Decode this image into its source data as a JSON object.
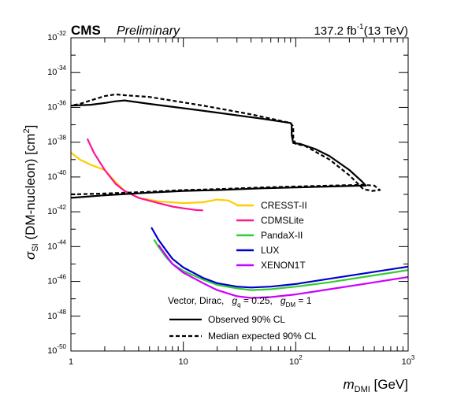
{
  "header": {
    "experiment": "CMS",
    "status": "Preliminary",
    "lumi_value": "137.2 fb",
    "lumi_exp": "-1",
    "lumi_energy": "(13 TeV)"
  },
  "chart_data": {
    "type": "line",
    "xscale": "log",
    "yscale": "log",
    "xlim": [
      1,
      1000
    ],
    "ylim": [
      1e-50,
      1e-32
    ],
    "xlabel": {
      "main": "m",
      "sub": "DMI",
      "unit": " [GeV]"
    },
    "ylabel": {
      "main": "σ",
      "sub": "SI",
      "text": " (DM-nucleon) [cm",
      "sup": "2",
      "close": "]"
    },
    "x_ticks": [
      {
        "value": 1,
        "label": "1"
      },
      {
        "value": 10,
        "label": "10"
      },
      {
        "value": 100,
        "label": "10",
        "exp": "2"
      },
      {
        "value": 1000,
        "label": "10",
        "exp": "3"
      }
    ],
    "y_ticks": [
      {
        "value": 1e-50,
        "label": "10",
        "exp": "-50"
      },
      {
        "value": 1e-48,
        "label": "10",
        "exp": "-48"
      },
      {
        "value": 1e-46,
        "label": "10",
        "exp": "-46"
      },
      {
        "value": 1e-44,
        "label": "10",
        "exp": "-44"
      },
      {
        "value": 1e-42,
        "label": "10",
        "exp": "-42"
      },
      {
        "value": 1e-40,
        "label": "10",
        "exp": "-40"
      },
      {
        "value": 1e-38,
        "label": "10",
        "exp": "-38"
      },
      {
        "value": 1e-36,
        "label": "10",
        "exp": "-36"
      },
      {
        "value": 1e-34,
        "label": "10",
        "exp": "-34"
      },
      {
        "value": 1e-32,
        "label": "10",
        "exp": "-32"
      }
    ],
    "model_text": {
      "prefix": "Vector, Dirac,",
      "gq_sym": "g",
      "gq_sub": "q",
      "gq_val": " = 0.25,",
      "gdm_sym": "g",
      "gdm_sub": "DM",
      "gdm_val": " = 1"
    },
    "series": [
      {
        "name": "CRESST-II",
        "color": "#ffcc00",
        "style": "solid",
        "width": 2.2,
        "points": [
          [
            1.0,
            -38.6
          ],
          [
            1.2,
            -39.0
          ],
          [
            1.5,
            -39.3
          ],
          [
            2.0,
            -39.6
          ],
          [
            2.5,
            -40.3
          ],
          [
            3,
            -40.8
          ],
          [
            4,
            -41.2
          ],
          [
            6,
            -41.4
          ],
          [
            10,
            -41.5
          ],
          [
            15,
            -41.45
          ],
          [
            20,
            -41.3
          ],
          [
            25,
            -41.35
          ],
          [
            30,
            -41.6
          ]
        ]
      },
      {
        "name": "CDMSLite",
        "color": "#ff1493",
        "style": "solid",
        "width": 2.2,
        "points": [
          [
            1.4,
            -37.8
          ],
          [
            1.6,
            -38.6
          ],
          [
            2.0,
            -39.6
          ],
          [
            2.5,
            -40.4
          ],
          [
            3,
            -40.8
          ],
          [
            4,
            -41.2
          ],
          [
            6,
            -41.5
          ],
          [
            8,
            -41.7
          ],
          [
            10,
            -41.8
          ],
          [
            13,
            -41.9
          ],
          [
            15,
            -41.92
          ]
        ]
      },
      {
        "name": "PandaX-II",
        "color": "#33cc33",
        "style": "solid",
        "width": 2.2,
        "points": [
          [
            5.5,
            -43.6
          ],
          [
            6,
            -44.0
          ],
          [
            7,
            -44.6
          ],
          [
            8,
            -45.0
          ],
          [
            10,
            -45.4
          ],
          [
            15,
            -45.9
          ],
          [
            20,
            -46.2
          ],
          [
            30,
            -46.4
          ],
          [
            40,
            -46.5
          ],
          [
            60,
            -46.45
          ],
          [
            100,
            -46.3
          ],
          [
            200,
            -46.05
          ],
          [
            400,
            -45.75
          ],
          [
            1000,
            -45.35
          ]
        ]
      },
      {
        "name": "LUX",
        "color": "#0000cc",
        "style": "solid",
        "width": 2.2,
        "points": [
          [
            5.2,
            -42.9
          ],
          [
            6,
            -43.6
          ],
          [
            7,
            -44.2
          ],
          [
            8,
            -44.7
          ],
          [
            10,
            -45.2
          ],
          [
            15,
            -45.8
          ],
          [
            20,
            -46.1
          ],
          [
            30,
            -46.3
          ],
          [
            40,
            -46.35
          ],
          [
            60,
            -46.3
          ],
          [
            100,
            -46.15
          ],
          [
            200,
            -45.85
          ],
          [
            400,
            -45.55
          ],
          [
            1000,
            -45.15
          ]
        ]
      },
      {
        "name": "XENON1T",
        "color": "#cc00ff",
        "style": "solid",
        "width": 2.2,
        "points": [
          [
            6,
            -43.9
          ],
          [
            7,
            -44.5
          ],
          [
            8,
            -45.0
          ],
          [
            10,
            -45.5
          ],
          [
            15,
            -46.1
          ],
          [
            20,
            -46.5
          ],
          [
            30,
            -46.85
          ],
          [
            40,
            -46.95
          ],
          [
            60,
            -46.9
          ],
          [
            100,
            -46.75
          ],
          [
            200,
            -46.45
          ],
          [
            400,
            -46.15
          ],
          [
            1000,
            -45.75
          ]
        ]
      },
      {
        "name": "Observed 90% CL",
        "legend": false,
        "color": "#000000",
        "style": "solid",
        "width": 2.2,
        "points": [
          [
            1.0,
            -41.2
          ],
          [
            2,
            -41.05
          ],
          [
            5,
            -40.9
          ],
          [
            10,
            -40.8
          ],
          [
            20,
            -40.75
          ],
          [
            50,
            -40.65
          ],
          [
            100,
            -40.6
          ],
          [
            200,
            -40.55
          ],
          [
            380,
            -40.5
          ],
          [
            420,
            -40.5
          ],
          [
            380,
            -40.2
          ],
          [
            300,
            -39.6
          ],
          [
            200,
            -38.8
          ],
          [
            150,
            -38.4
          ],
          [
            110,
            -38.1
          ],
          [
            95,
            -38.05
          ],
          [
            92,
            -37.6
          ],
          [
            92,
            -37.0
          ],
          [
            90,
            -36.9
          ],
          [
            50,
            -36.65
          ],
          [
            20,
            -36.3
          ],
          [
            10,
            -36.05
          ],
          [
            5,
            -35.8
          ],
          [
            3,
            -35.6
          ],
          [
            2.5,
            -35.65
          ],
          [
            2,
            -35.75
          ],
          [
            1.5,
            -35.85
          ],
          [
            1.0,
            -35.9
          ]
        ]
      },
      {
        "name": "Median expected 90% CL",
        "legend": false,
        "color": "#000000",
        "style": "dashed",
        "width": 2.2,
        "points": [
          [
            1.0,
            -41.0
          ],
          [
            2,
            -40.95
          ],
          [
            5,
            -40.85
          ],
          [
            10,
            -40.75
          ],
          [
            20,
            -40.7
          ],
          [
            50,
            -40.6
          ],
          [
            100,
            -40.55
          ],
          [
            200,
            -40.5
          ],
          [
            400,
            -40.45
          ],
          [
            500,
            -40.5
          ],
          [
            560,
            -40.75
          ],
          [
            480,
            -40.8
          ],
          [
            400,
            -40.7
          ],
          [
            300,
            -39.9
          ],
          [
            200,
            -39.0
          ],
          [
            120,
            -38.2
          ],
          [
            100,
            -38.1
          ],
          [
            95,
            -37.8
          ],
          [
            95,
            -37.1
          ],
          [
            90,
            -36.9
          ],
          [
            40,
            -36.4
          ],
          [
            15,
            -35.9
          ],
          [
            5,
            -35.4
          ],
          [
            3,
            -35.3
          ],
          [
            2.5,
            -35.25
          ],
          [
            2,
            -35.35
          ],
          [
            1.5,
            -35.6
          ],
          [
            1.2,
            -35.8
          ],
          [
            1.0,
            -35.9
          ]
        ]
      }
    ],
    "legend_placement": "center-right",
    "line_legend": [
      {
        "label": "Observed 90% CL",
        "style": "solid"
      },
      {
        "label": "Median expected 90% CL",
        "style": "dashed"
      }
    ]
  }
}
